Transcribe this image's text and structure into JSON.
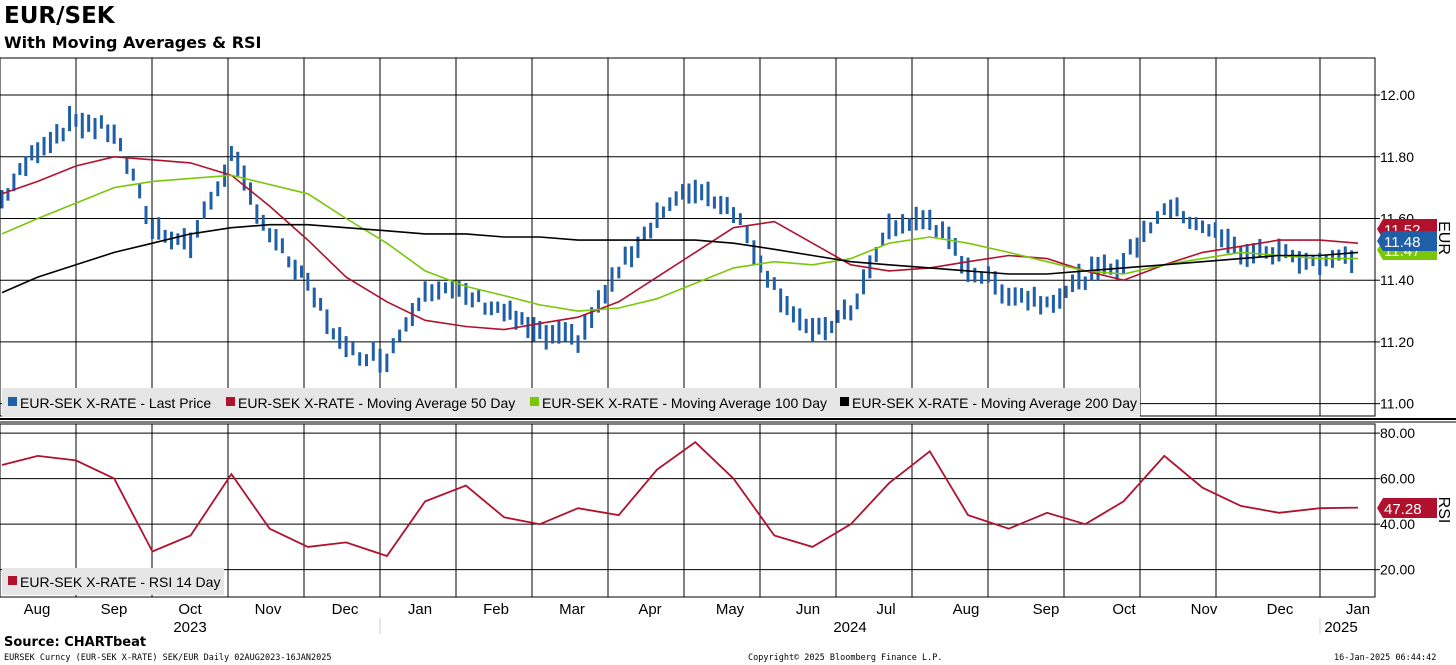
{
  "header": {
    "title": "EUR/SEK",
    "subtitle": "With Moving Averages & RSI"
  },
  "footer": {
    "source": "Source: CHARTbeat",
    "left": "EURSEK Curncy (EUR-SEK X-RATE) SEK/EUR  Daily 02AUG2023-16JAN2025",
    "center": "Copyright© 2025 Bloomberg Finance L.P.",
    "right": "16-Jan-2025 06:44:42"
  },
  "chart_data": [
    {
      "type": "line",
      "panel": "price",
      "axis_label": "EUR",
      "ylim": [
        10.96,
        12.12
      ],
      "yticks": [
        11.0,
        11.2,
        11.4,
        11.6,
        11.8,
        12.0
      ],
      "ytick_labels": [
        "11.00",
        "11.20",
        "11.40",
        "11.60",
        "11.80",
        "12.00"
      ],
      "grid": true,
      "legend": "bottom-left",
      "x_months": [
        "Aug",
        "Sep",
        "Oct",
        "Nov",
        "Dec",
        "Jan",
        "Feb",
        "Mar",
        "Apr",
        "May",
        "Jun",
        "Jul",
        "Aug",
        "Sep",
        "Oct",
        "Nov",
        "Dec",
        "Jan"
      ],
      "x_years": [
        "2023",
        "2024",
        "2025"
      ],
      "x": [
        "2023-08-02",
        "2023-08-16",
        "2023-08-31",
        "2023-09-15",
        "2023-09-30",
        "2023-10-15",
        "2023-10-31",
        "2023-11-15",
        "2023-11-30",
        "2023-12-15",
        "2023-12-31",
        "2024-01-15",
        "2024-01-31",
        "2024-02-15",
        "2024-02-29",
        "2024-03-15",
        "2024-03-31",
        "2024-04-15",
        "2024-04-30",
        "2024-05-15",
        "2024-05-31",
        "2024-06-15",
        "2024-06-30",
        "2024-07-15",
        "2024-07-31",
        "2024-08-15",
        "2024-08-31",
        "2024-09-15",
        "2024-09-30",
        "2024-10-15",
        "2024-10-31",
        "2024-11-15",
        "2024-11-30",
        "2024-12-15",
        "2024-12-31",
        "2025-01-15"
      ],
      "series": [
        {
          "name": "EUR-SEK X-RATE - Last Price",
          "color": "#1f5fa8",
          "style": "bar",
          "values": [
            11.66,
            11.83,
            11.92,
            11.88,
            11.57,
            11.52,
            11.8,
            11.55,
            11.38,
            11.17,
            11.15,
            11.38,
            11.35,
            11.3,
            11.22,
            11.21,
            11.43,
            11.61,
            11.7,
            11.63,
            11.38,
            11.22,
            11.3,
            11.57,
            11.6,
            11.44,
            11.36,
            11.33,
            11.41,
            11.46,
            11.64,
            11.58,
            11.49,
            11.49,
            11.46,
            11.48
          ]
        },
        {
          "name": "EUR-SEK X-RATE - Moving Average 50 Day",
          "color": "#b0122e",
          "values": [
            11.68,
            11.72,
            11.77,
            11.8,
            11.79,
            11.78,
            11.74,
            11.64,
            11.53,
            11.41,
            11.33,
            11.27,
            11.25,
            11.24,
            11.26,
            11.28,
            11.33,
            11.41,
            11.49,
            11.57,
            11.59,
            11.52,
            11.45,
            11.43,
            11.44,
            11.46,
            11.48,
            11.47,
            11.43,
            11.4,
            11.45,
            11.49,
            11.51,
            11.53,
            11.53,
            11.52
          ]
        },
        {
          "name": "EUR-SEK X-RATE - Moving Average 100 Day",
          "color": "#7ac70a",
          "values": [
            11.55,
            11.6,
            11.65,
            11.7,
            11.72,
            11.73,
            11.74,
            11.71,
            11.68,
            11.6,
            11.52,
            11.43,
            11.38,
            11.35,
            11.32,
            11.3,
            11.31,
            11.34,
            11.39,
            11.44,
            11.46,
            11.45,
            11.47,
            11.52,
            11.54,
            11.52,
            11.49,
            11.46,
            11.43,
            11.42,
            11.45,
            11.47,
            11.49,
            11.48,
            11.47,
            11.47
          ]
        },
        {
          "name": "EUR-SEK X-RATE - Moving Average 200 Day",
          "color": "#000000",
          "values": [
            11.36,
            11.41,
            11.45,
            11.49,
            11.52,
            11.55,
            11.57,
            11.58,
            11.58,
            11.57,
            11.56,
            11.55,
            11.55,
            11.54,
            11.54,
            11.53,
            11.53,
            11.53,
            11.53,
            11.52,
            11.5,
            11.48,
            11.46,
            11.45,
            11.44,
            11.43,
            11.42,
            11.42,
            11.43,
            11.44,
            11.45,
            11.46,
            11.47,
            11.48,
            11.48,
            11.49
          ]
        }
      ],
      "last_value_labels": [
        {
          "text": "11.52",
          "color": "#b0122e"
        },
        {
          "text": "11.48",
          "color": "#1f5fa8"
        },
        {
          "text": "11.47",
          "color": "#7ac70a"
        }
      ]
    },
    {
      "type": "line",
      "panel": "rsi",
      "axis_label": "RSI",
      "ylim": [
        8,
        84
      ],
      "yticks": [
        20,
        40,
        60,
        80
      ],
      "ytick_labels": [
        "20.00",
        "40.00",
        "60.00",
        "80.00"
      ],
      "grid": true,
      "legend": "bottom-left",
      "series": [
        {
          "name": "EUR-SEK X-RATE - RSI 14 Day",
          "color": "#b0122e",
          "values": [
            66,
            70,
            68,
            60,
            28,
            35,
            62,
            38,
            30,
            32,
            26,
            50,
            57,
            43,
            40,
            47,
            44,
            64,
            76,
            60,
            35,
            30,
            40,
            58,
            72,
            44,
            38,
            45,
            40,
            50,
            70,
            56,
            48,
            45,
            47,
            47.28
          ]
        }
      ],
      "last_value_labels": [
        {
          "text": "47.28",
          "color": "#b0122e"
        }
      ]
    }
  ]
}
